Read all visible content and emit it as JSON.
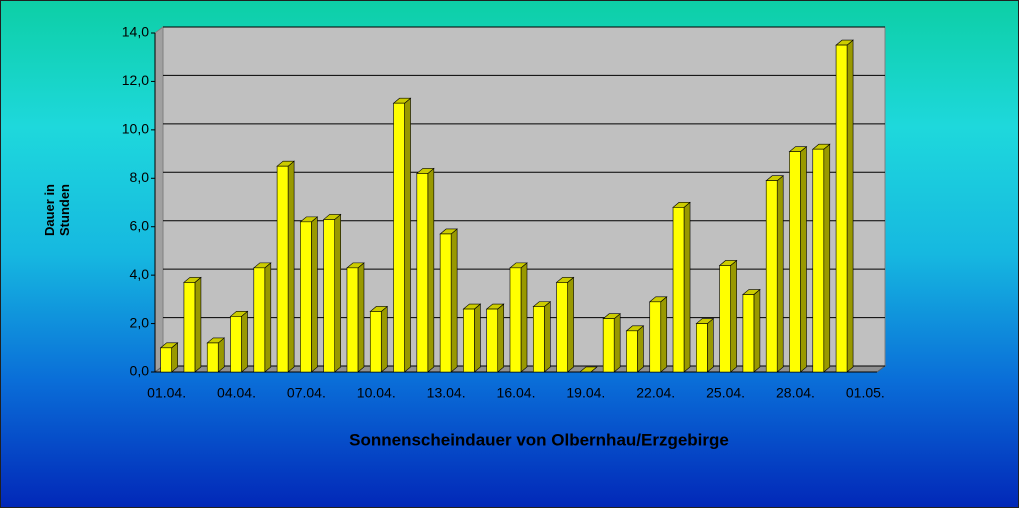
{
  "chart_data": {
    "type": "bar3d",
    "title": "Sonnenscheindauer von Olbernhau/Erzgebirge",
    "y_label": "Dauer in Stunden",
    "categories": [
      "01.04.",
      null,
      null,
      "04.04.",
      null,
      null,
      "07.04.",
      null,
      null,
      "10.04.",
      null,
      null,
      "13.04.",
      null,
      null,
      "16.04.",
      null,
      null,
      "19.04.",
      null,
      null,
      "22.04.",
      null,
      null,
      "25.04.",
      null,
      null,
      "28.04.",
      null,
      null,
      "01.05."
    ],
    "values": [
      1.0,
      3.7,
      1.2,
      2.3,
      4.3,
      8.5,
      6.2,
      6.3,
      4.3,
      2.5,
      11.1,
      8.2,
      5.7,
      2.6,
      2.6,
      4.3,
      2.7,
      3.7,
      0,
      2.2,
      1.7,
      2.9,
      6.8,
      2.0,
      4.4,
      3.2,
      7.9,
      9.1,
      9.2,
      13.5,
      null
    ],
    "color": "#ffff00",
    "ylim": [
      0,
      14
    ],
    "yticks": [
      {
        "value": 0,
        "label": "0,0"
      },
      {
        "value": 2,
        "label": "2,0"
      },
      {
        "value": 4,
        "label": "4,0"
      },
      {
        "value": 6,
        "label": "6,0"
      },
      {
        "value": 8,
        "label": "8,0"
      },
      {
        "value": 10,
        "label": "10,0"
      },
      {
        "value": 12,
        "label": "12,0"
      },
      {
        "value": 14,
        "label": "14,0"
      }
    ],
    "grid": true
  }
}
